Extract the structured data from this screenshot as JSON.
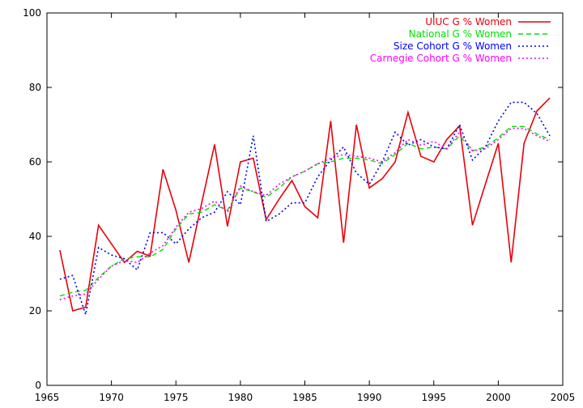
{
  "chart_data": {
    "type": "line",
    "title": "",
    "xlabel": "",
    "ylabel": "",
    "xlim": [
      1965,
      2005
    ],
    "ylim": [
      0,
      100
    ],
    "xticks": [
      1965,
      1970,
      1975,
      1980,
      1985,
      1990,
      1995,
      2000,
      2005
    ],
    "yticks": [
      0,
      20,
      40,
      60,
      80,
      100
    ],
    "grid": false,
    "legend_position": "top-right",
    "series": [
      {
        "name": "UIUC G % Women",
        "color": "#e8000b",
        "dash": "solid",
        "x": [
          1966,
          1967,
          1968,
          1969,
          1970,
          1971,
          1972,
          1973,
          1974,
          1975,
          1976,
          1977,
          1978,
          1979,
          1980,
          1981,
          1982,
          1983,
          1984,
          1985,
          1986,
          1987,
          1988,
          1989,
          1990,
          1991,
          1992,
          1993,
          1994,
          1995,
          1996,
          1997,
          1998,
          1999,
          2000,
          2001,
          2002,
          2003,
          2004
        ],
        "y": [
          36.3,
          20.0,
          21.0,
          43.0,
          38.0,
          33.0,
          36.0,
          34.7,
          58.0,
          47.0,
          33.0,
          49.0,
          64.7,
          42.7,
          60.0,
          61.0,
          44.5,
          50.0,
          55.0,
          48.0,
          45.0,
          71.0,
          38.3,
          70.0,
          53.0,
          55.5,
          60.0,
          73.3,
          61.5,
          60.0,
          66.0,
          69.7,
          43.0,
          54.0,
          65.0,
          33.0,
          65.0,
          73.7,
          77.2
        ]
      },
      {
        "name": "National G % Women",
        "color": "#00e000",
        "dash": "dashed",
        "x": [
          1966,
          1967,
          1968,
          1969,
          1970,
          1971,
          1972,
          1973,
          1974,
          1975,
          1976,
          1977,
          1978,
          1979,
          1980,
          1981,
          1982,
          1983,
          1984,
          1985,
          1986,
          1987,
          1988,
          1989,
          1990,
          1991,
          1992,
          1993,
          1994,
          1995,
          1996,
          1997,
          1998,
          1999,
          2000,
          2001,
          2002,
          2003,
          2004
        ],
        "y": [
          24.0,
          25.0,
          25.5,
          29.0,
          32.0,
          34.0,
          34.5,
          34.5,
          36.5,
          42.0,
          46.0,
          46.5,
          48.5,
          47.0,
          53.0,
          52.0,
          50.5,
          53.0,
          56.0,
          57.5,
          59.5,
          60.0,
          61.0,
          61.0,
          60.5,
          59.5,
          62.0,
          65.0,
          63.5,
          64.0,
          63.5,
          67.0,
          63.0,
          64.0,
          66.5,
          69.5,
          69.5,
          67.5,
          66.0
        ]
      },
      {
        "name": "Size Cohort G % Women",
        "color": "#0000ff",
        "dash": "dotted",
        "x": [
          1966,
          1967,
          1968,
          1969,
          1970,
          1971,
          1972,
          1973,
          1974,
          1975,
          1976,
          1977,
          1978,
          1979,
          1980,
          1981,
          1982,
          1983,
          1984,
          1985,
          1986,
          1987,
          1988,
          1989,
          1990,
          1991,
          1992,
          1993,
          1994,
          1995,
          1996,
          1997,
          1998,
          1999,
          2000,
          2001,
          2002,
          2003,
          2004
        ],
        "y": [
          28.5,
          29.5,
          19.0,
          37.0,
          35.0,
          34.0,
          31.0,
          41.0,
          41.0,
          38.0,
          42.0,
          45.0,
          46.5,
          52.0,
          48.5,
          67.0,
          44.0,
          46.0,
          49.0,
          49.0,
          56.0,
          60.5,
          64.0,
          57.0,
          54.0,
          60.0,
          68.0,
          64.5,
          66.0,
          64.0,
          63.5,
          70.0,
          60.5,
          64.0,
          71.0,
          76.0,
          76.0,
          73.0,
          67.0
        ]
      },
      {
        "name": "Carnegie Cohort G % Women",
        "color": "#ff00ff",
        "dash": "dotted",
        "x": [
          1966,
          1967,
          1968,
          1969,
          1970,
          1971,
          1972,
          1973,
          1974,
          1975,
          1976,
          1977,
          1978,
          1979,
          1980,
          1981,
          1982,
          1983,
          1984,
          1985,
          1986,
          1987,
          1988,
          1989,
          1990,
          1991,
          1992,
          1993,
          1994,
          1995,
          1996,
          1997,
          1998,
          1999,
          2000,
          2001,
          2002,
          2003,
          2004
        ],
        "y": [
          23.0,
          24.0,
          24.5,
          28.5,
          32.0,
          33.5,
          33.0,
          35.5,
          37.5,
          42.5,
          46.5,
          47.5,
          49.5,
          46.5,
          53.5,
          52.0,
          51.0,
          54.0,
          56.0,
          57.5,
          59.5,
          61.0,
          62.0,
          61.5,
          61.0,
          60.0,
          62.5,
          66.0,
          64.5,
          65.5,
          63.5,
          68.0,
          63.0,
          63.5,
          66.0,
          69.0,
          69.0,
          67.0,
          65.5
        ]
      }
    ]
  }
}
